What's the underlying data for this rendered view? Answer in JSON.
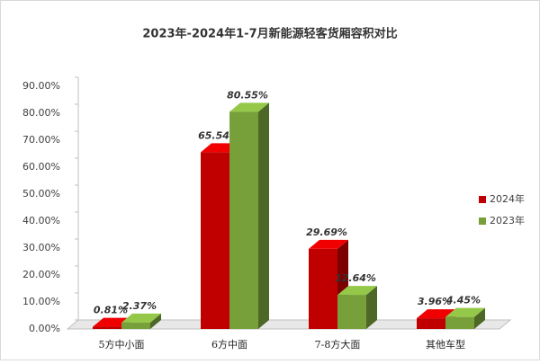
{
  "chart_data": {
    "type": "bar3d",
    "title": "2023年-2024年1-7月新能源轻客货厢容积对比",
    "categories": [
      "5方中小面",
      "6方中面",
      "7-8方大面",
      "其他车型"
    ],
    "series": [
      {
        "name": "2024年",
        "color": "#c00000",
        "values": [
          0.81,
          65.54,
          29.69,
          3.96
        ],
        "value_labels": [
          "0.81%",
          "65.54%",
          "29.69%",
          "3.96%"
        ]
      },
      {
        "name": "2023年",
        "color": "#77a03a",
        "values": [
          2.37,
          80.55,
          12.64,
          4.45
        ],
        "value_labels": [
          "2.37%",
          "80.55%",
          "12.64%",
          "4.45%"
        ]
      }
    ],
    "ylim": [
      0,
      90
    ],
    "yticks": [
      {
        "value": 0,
        "label": "0.00%"
      },
      {
        "value": 10,
        "label": "10.00%"
      },
      {
        "value": 20,
        "label": "20.00%"
      },
      {
        "value": 30,
        "label": "30.00%"
      },
      {
        "value": 40,
        "label": "40.00%"
      },
      {
        "value": 50,
        "label": "50.00%"
      },
      {
        "value": 60,
        "label": "60.00%"
      },
      {
        "value": 70,
        "label": "70.00%"
      },
      {
        "value": 80,
        "label": "80.00%"
      },
      {
        "value": 90,
        "label": "90.00%"
      }
    ],
    "legend": "right"
  }
}
